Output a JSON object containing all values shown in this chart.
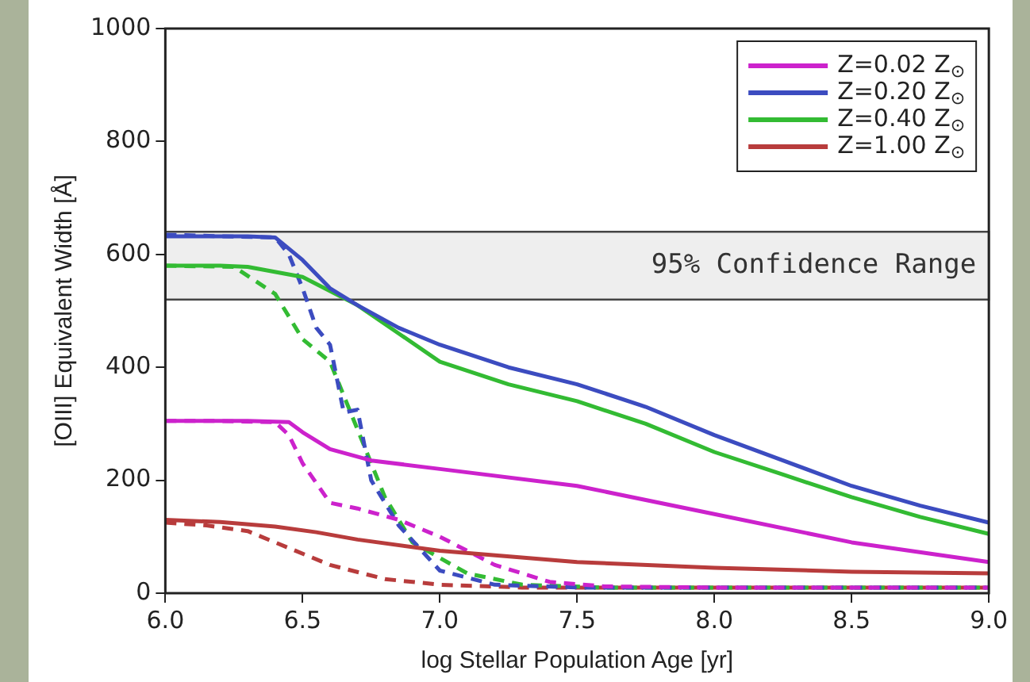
{
  "chart_data": {
    "type": "line",
    "xlabel": "log Stellar Population Age [yr]",
    "ylabel": "[OIII] Equivalent Width [Å]",
    "xlim": [
      6,
      9
    ],
    "xticks": [
      {
        "value": 6,
        "label": "6.0"
      },
      {
        "value": 6.5,
        "label": "6.5"
      },
      {
        "value": 7,
        "label": "7.0"
      },
      {
        "value": 7.5,
        "label": "7.5"
      },
      {
        "value": 8,
        "label": "8.0"
      },
      {
        "value": 8.5,
        "label": "8.5"
      },
      {
        "value": 9,
        "label": "9.0"
      }
    ],
    "ylim": [
      0,
      1000
    ],
    "yticks": [
      0,
      200,
      400,
      600,
      800,
      1000
    ],
    "grid": false,
    "legend": "top right",
    "marker": "none",
    "bands": [
      {
        "axis": "y",
        "from": 520,
        "to": 640,
        "label": "95% Confidence Range",
        "color": "#eeeeee"
      }
    ],
    "series": [
      {
        "name": "Z=0.02 Z$_{⊙}$",
        "color": "#cc22cc",
        "line_style": "solid",
        "x": [
          6,
          6.3,
          6.45,
          6.5,
          6.6,
          6.75,
          7,
          7.5,
          8,
          8.5,
          9
        ],
        "values": [
          305,
          305,
          303,
          285,
          255,
          235,
          220,
          190,
          140,
          90,
          55
        ]
      },
      {
        "name": "Z=0.20 Z$_{⊙}$",
        "color": "#3c4cc0",
        "line_style": "solid",
        "x": [
          6,
          6.3,
          6.4,
          6.5,
          6.6,
          6.7,
          6.85,
          7,
          7.25,
          7.5,
          7.75,
          8,
          8.25,
          8.5,
          8.75,
          9
        ],
        "values": [
          632,
          632,
          630,
          590,
          540,
          510,
          470,
          440,
          400,
          370,
          330,
          280,
          235,
          190,
          155,
          125
        ]
      },
      {
        "name": "Z=0.40 Z$_{⊙}$",
        "color": "#33bb33",
        "line_style": "solid",
        "x": [
          6,
          6.2,
          6.3,
          6.5,
          6.6,
          6.7,
          6.85,
          7,
          7.25,
          7.5,
          7.75,
          8,
          8.25,
          8.5,
          8.75,
          9
        ],
        "values": [
          580,
          580,
          578,
          560,
          535,
          510,
          460,
          410,
          370,
          340,
          300,
          250,
          210,
          170,
          135,
          105
        ]
      },
      {
        "name": "Z=1.00 Z$_{⊙}$",
        "color": "#b83c3c",
        "line_style": "solid",
        "x": [
          6,
          6.2,
          6.4,
          6.55,
          6.7,
          7,
          7.5,
          8,
          8.5,
          9
        ],
        "values": [
          130,
          126,
          118,
          108,
          95,
          75,
          55,
          45,
          38,
          35
        ]
      },
      {
        "color": "#cc22cc",
        "line_style": "dashed",
        "x": [
          6,
          6.2,
          6.4,
          6.45,
          6.5,
          6.6,
          6.7,
          6.85,
          7,
          7.1,
          7.2,
          7.4,
          7.6,
          8,
          9
        ],
        "values": [
          305,
          305,
          303,
          280,
          230,
          160,
          150,
          130,
          100,
          75,
          50,
          20,
          12,
          10,
          10
        ]
      },
      {
        "color": "#3c4cc0",
        "line_style": "dashed",
        "x": [
          6,
          6.2,
          6.4,
          6.45,
          6.5,
          6.55,
          6.6,
          6.65,
          6.7,
          6.75,
          6.85,
          7,
          7.2,
          7.5,
          8,
          9
        ],
        "values": [
          635,
          632,
          630,
          600,
          540,
          470,
          440,
          320,
          325,
          200,
          120,
          40,
          15,
          10,
          10,
          10
        ]
      },
      {
        "color": "#33bb33",
        "line_style": "dashed",
        "x": [
          6,
          6.25,
          6.4,
          6.5,
          6.6,
          6.7,
          6.8,
          6.9,
          7.1,
          7.3,
          7.6,
          8,
          9
        ],
        "values": [
          580,
          578,
          530,
          450,
          410,
          290,
          170,
          90,
          35,
          15,
          10,
          10,
          10
        ]
      },
      {
        "color": "#b83c3c",
        "line_style": "dashed",
        "x": [
          6,
          6.15,
          6.3,
          6.45,
          6.6,
          6.8,
          7,
          7.3,
          8,
          9
        ],
        "values": [
          125,
          120,
          110,
          80,
          50,
          25,
          15,
          10,
          10,
          10
        ]
      }
    ]
  }
}
